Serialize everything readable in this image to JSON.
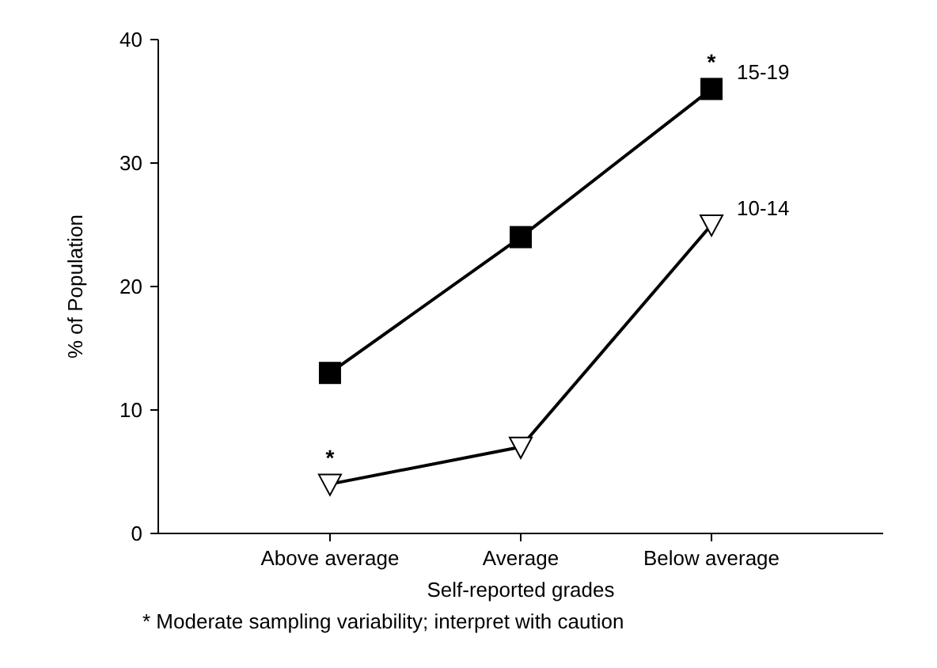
{
  "chart_data": {
    "type": "line",
    "xlabel": "Self-reported grades",
    "ylabel": "% of Population",
    "categories": [
      "Above average",
      "Average",
      "Below average"
    ],
    "series": [
      {
        "name": "15-19",
        "color": "#000000",
        "marker": "square",
        "values": [
          13,
          24,
          36
        ]
      },
      {
        "name": "10-14",
        "color": "#000000",
        "marker": "triangle",
        "values": [
          4,
          7,
          25
        ]
      }
    ],
    "ylim": [
      0,
      40
    ],
    "yticks": [
      0,
      10,
      20,
      30,
      40
    ],
    "grid": false,
    "line_style": "solid",
    "annotations": [
      {
        "text": "*",
        "x": "Above average",
        "y": 4
      },
      {
        "text": "*",
        "x": "Below average",
        "y": 36
      },
      "* Moderate sampling variability; interpret with caution"
    ]
  }
}
